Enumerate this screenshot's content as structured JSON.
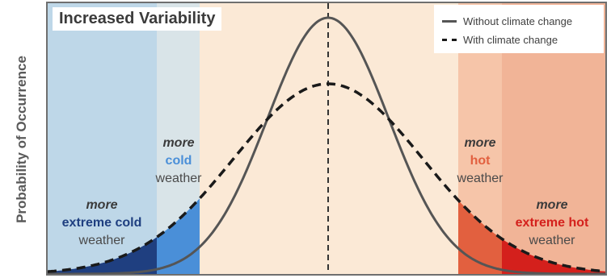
{
  "axis": {
    "ylabel": "Probability of Occurrence"
  },
  "title": "Increased Variability",
  "legend": {
    "items": [
      {
        "label": "Without climate change",
        "style": "solid"
      },
      {
        "label": "With climate change",
        "style": "dashed"
      }
    ]
  },
  "zones": {
    "extreme_cold": {
      "more": "more",
      "kind": "extreme cold",
      "weather": "weather",
      "color": "#1f3f80"
    },
    "cold": {
      "more": "more",
      "kind": "cold",
      "weather": "weather",
      "color": "#4a8fd8"
    },
    "hot": {
      "more": "more",
      "kind": "hot",
      "weather": "weather",
      "color": "#e2603f"
    },
    "extreme_hot": {
      "more": "more",
      "kind": "extreme hot",
      "weather": "weather",
      "color": "#d4201c"
    }
  },
  "colors": {
    "band_extreme_cold": "#bed7e8",
    "band_cold": "#d9e4e8",
    "band_center": "#fbe9d6",
    "band_hot": "#f6c5a9",
    "band_extreme_hot": "#f1b497",
    "curve_without": "#555555",
    "curve_with": "#1a1a1a"
  }
}
